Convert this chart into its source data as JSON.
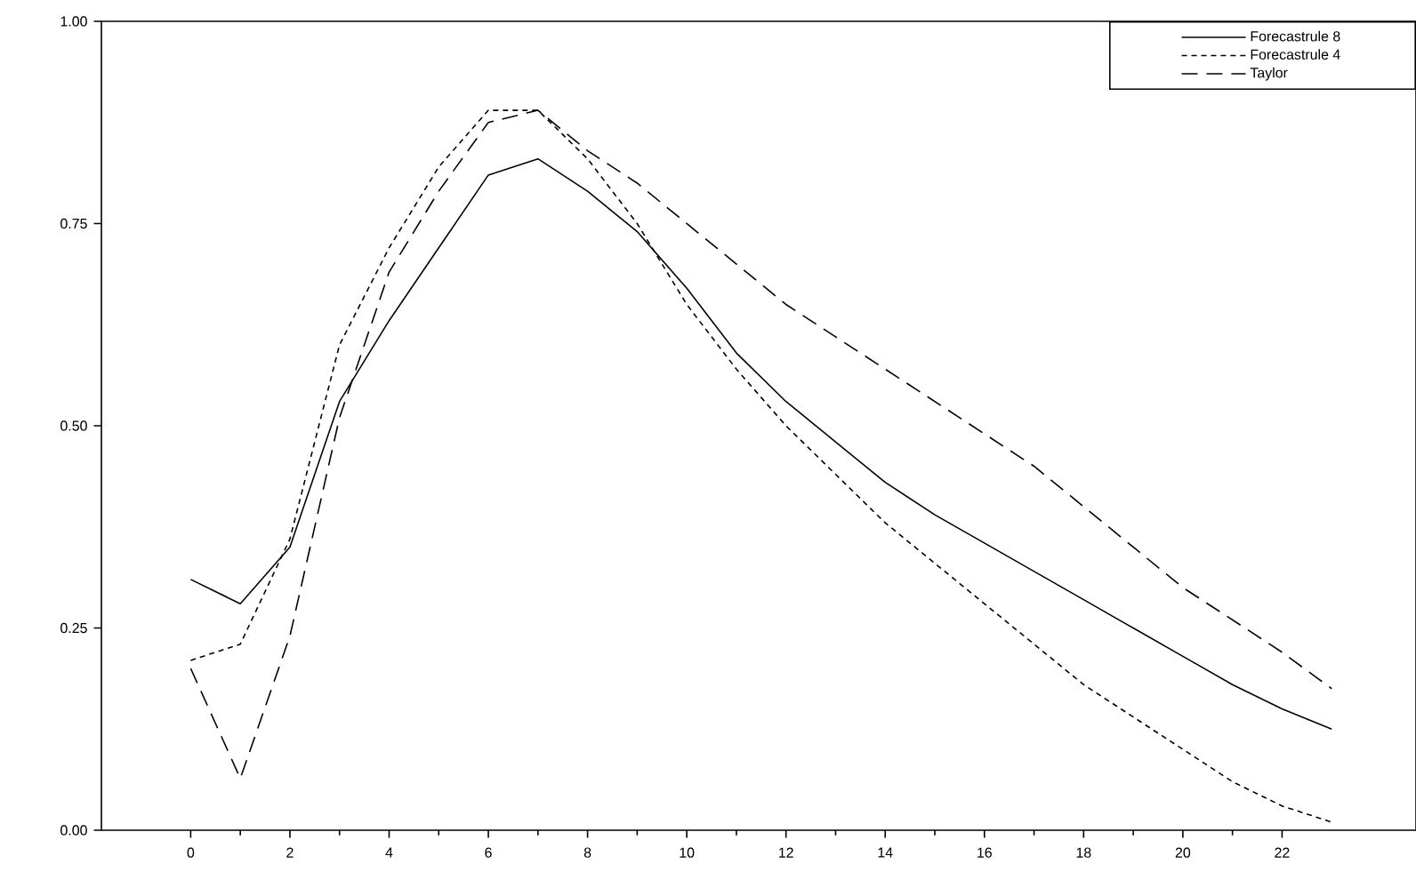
{
  "chart_data": {
    "type": "line",
    "x": [
      0,
      1,
      2,
      3,
      4,
      5,
      6,
      7,
      8,
      9,
      10,
      11,
      12,
      13,
      14,
      15,
      16,
      17,
      18,
      19,
      20,
      21,
      22,
      23
    ],
    "series": [
      {
        "name": "Forecastrule 8",
        "color": "#000000",
        "line_style": "solid",
        "values": [
          0.31,
          0.28,
          0.35,
          0.53,
          0.63,
          0.72,
          0.81,
          0.83,
          0.79,
          0.74,
          0.67,
          0.59,
          0.53,
          0.48,
          0.43,
          0.39,
          0.355,
          0.32,
          0.285,
          0.25,
          0.215,
          0.18,
          0.15,
          0.125
        ]
      },
      {
        "name": "Forecastrule 4",
        "color": "#000000",
        "line_style": "dotted",
        "values": [
          0.21,
          0.23,
          0.36,
          0.6,
          0.72,
          0.82,
          0.89,
          0.89,
          0.83,
          0.75,
          0.65,
          0.57,
          0.5,
          0.44,
          0.38,
          0.33,
          0.28,
          0.23,
          0.18,
          0.14,
          0.1,
          0.06,
          0.03,
          0.01
        ]
      },
      {
        "name": "Taylor",
        "color": "#000000",
        "line_style": "dashed",
        "values": [
          0.2,
          0.064,
          0.24,
          0.51,
          0.69,
          0.79,
          0.875,
          0.89,
          0.84,
          0.8,
          0.75,
          0.7,
          0.65,
          0.61,
          0.57,
          0.53,
          0.49,
          0.45,
          0.4,
          0.35,
          0.3,
          0.26,
          0.22,
          0.175
        ]
      }
    ],
    "xlim": [
      -1.8,
      24.7
    ],
    "ylim": [
      0,
      1
    ],
    "xticks": [
      0,
      2,
      4,
      6,
      8,
      10,
      12,
      14,
      16,
      18,
      20,
      22
    ],
    "yticks": [
      {
        "value": 0,
        "label": "0.00"
      },
      {
        "value": 0.25,
        "label": "0.25"
      },
      {
        "value": 0.5,
        "label": "0.50"
      },
      {
        "value": 0.75,
        "label": "0.75"
      },
      {
        "value": 1,
        "label": "1.00"
      }
    ],
    "grid": false,
    "legend": "top right",
    "marker": "none"
  }
}
